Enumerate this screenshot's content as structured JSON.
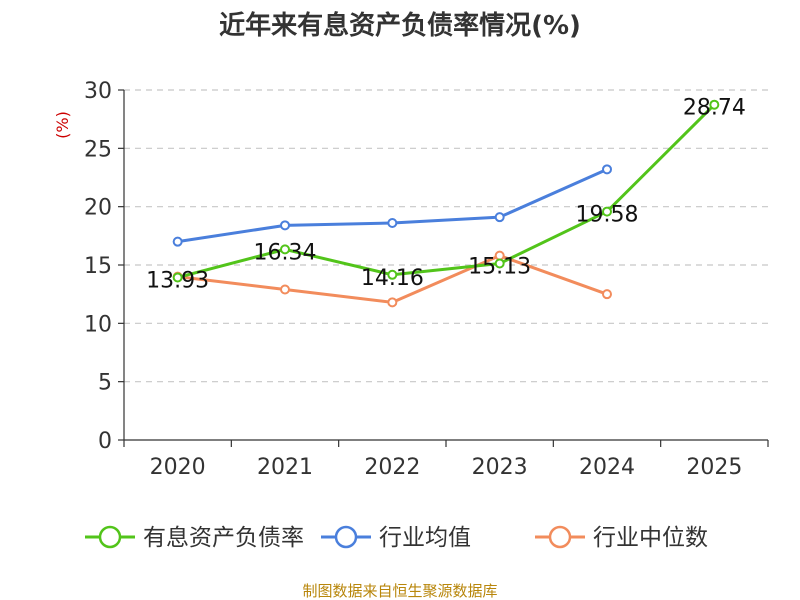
{
  "chart_data": {
    "type": "line",
    "title": "近年来有息资产负债率情况(%)",
    "ylabel": "(%)",
    "xlabel": "",
    "categories": [
      "2020",
      "2021",
      "2022",
      "2023",
      "2024",
      "2025"
    ],
    "ylim": [
      0,
      30
    ],
    "yticks": [
      "0",
      "5",
      "10",
      "15",
      "20",
      "25",
      "30"
    ],
    "grid": true,
    "legend_position": "bottom",
    "series": [
      {
        "name": "有息资产负债率",
        "color": "#52c41a",
        "values": [
          13.93,
          16.34,
          14.16,
          15.13,
          19.58,
          28.74
        ],
        "labels": [
          "13.93",
          "16.34",
          "14.16",
          "15.13",
          "19.58",
          "28.74"
        ]
      },
      {
        "name": "行业均值",
        "color": "#4a7fdc",
        "values": [
          17.0,
          18.4,
          18.6,
          19.1,
          23.2,
          null
        ]
      },
      {
        "name": "行业中位数",
        "color": "#f28c5c",
        "values": [
          14.0,
          12.9,
          11.8,
          15.8,
          12.5,
          null
        ]
      }
    ]
  },
  "source": "制图数据来自恒生聚源数据库"
}
